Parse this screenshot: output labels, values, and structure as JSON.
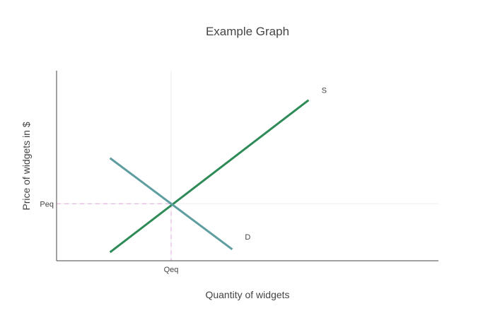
{
  "chart_data": {
    "type": "line",
    "title": "Example Graph",
    "xlabel": "Quantity of widgets",
    "ylabel": "Price of widgets in $",
    "xlim": [
      0,
      10
    ],
    "ylim": [
      0,
      10
    ],
    "x_ticks": [
      {
        "value": 3,
        "label": "Qeq"
      }
    ],
    "y_ticks": [
      {
        "value": 3,
        "label": "Peq"
      }
    ],
    "equilibrium": {
      "x": 3,
      "y": 3
    },
    "series": [
      {
        "name": "S",
        "color": "#2e8b57",
        "x": [
          1.4,
          6.6
        ],
        "y": [
          0.45,
          8.45
        ]
      },
      {
        "name": "D",
        "color": "#5f9ea0",
        "x": [
          1.4,
          4.6
        ],
        "y": [
          5.4,
          0.6
        ]
      }
    ],
    "grid": false,
    "legend": "none"
  }
}
